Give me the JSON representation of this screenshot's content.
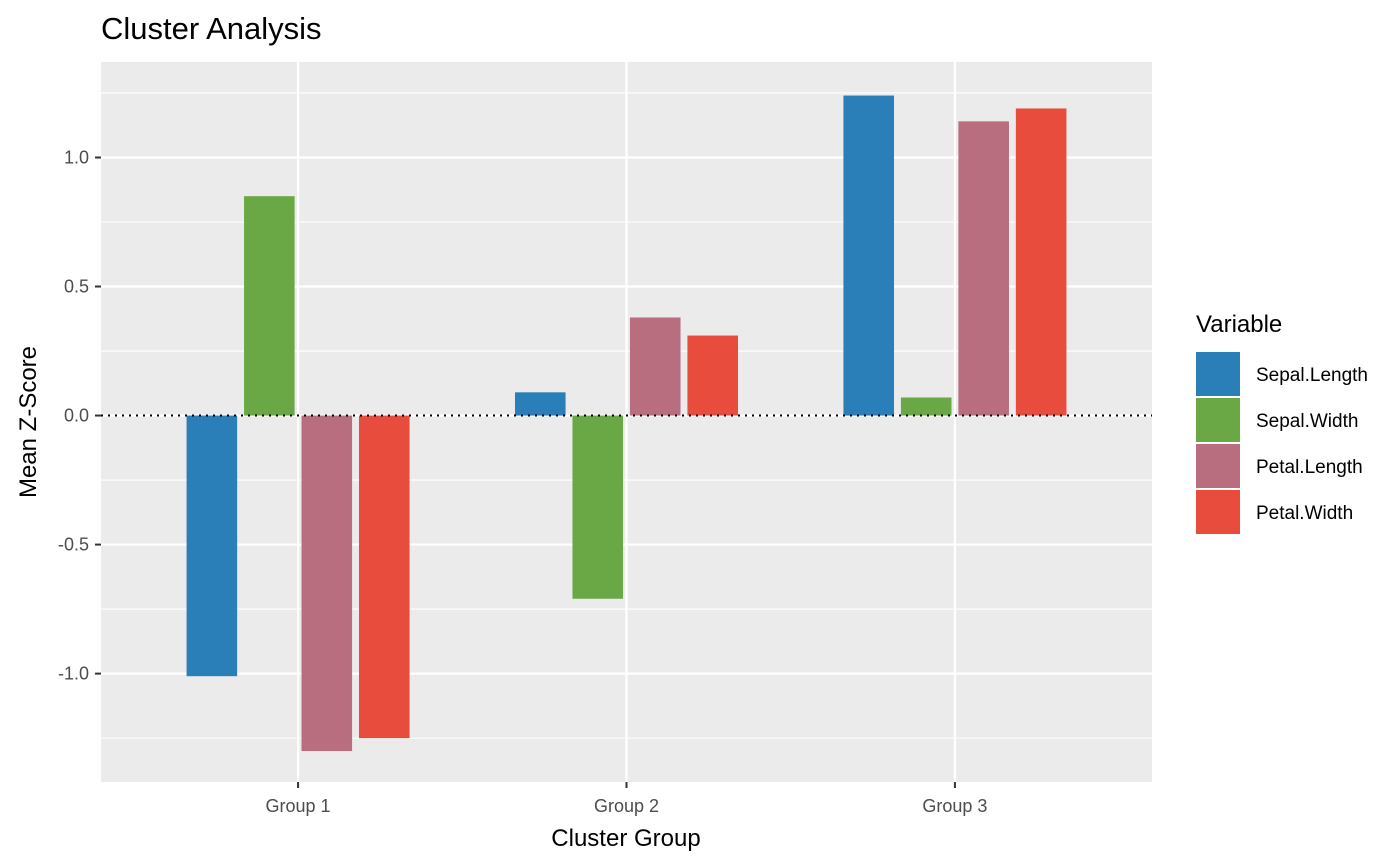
{
  "chart_data": {
    "type": "bar",
    "title": "Cluster Analysis",
    "xlabel": "Cluster Group",
    "ylabel": "Mean Z-Score",
    "categories": [
      "Group 1",
      "Group 2",
      "Group 3"
    ],
    "ylim": [
      -1.42,
      1.37
    ],
    "yticks": [
      -1.0,
      -0.5,
      0.0,
      0.5,
      1.0
    ],
    "ytick_labels": [
      "-1.0",
      "-0.5",
      "0.0",
      "0.5",
      "1.0"
    ],
    "grid": true,
    "reference_line": {
      "y": 0,
      "style": "dotted"
    },
    "legend": {
      "title": "Variable",
      "position": "right"
    },
    "series": [
      {
        "name": "Sepal.Length",
        "color": "#2a7fb8",
        "values": [
          -1.01,
          0.09,
          1.24
        ]
      },
      {
        "name": "Sepal.Width",
        "color": "#6aa845",
        "values": [
          0.85,
          -0.71,
          0.07
        ]
      },
      {
        "name": "Petal.Length",
        "color": "#b86e7e",
        "values": [
          -1.3,
          0.38,
          1.14
        ]
      },
      {
        "name": "Petal.Width",
        "color": "#e84c3d",
        "values": [
          -1.25,
          0.31,
          1.19
        ]
      }
    ]
  }
}
